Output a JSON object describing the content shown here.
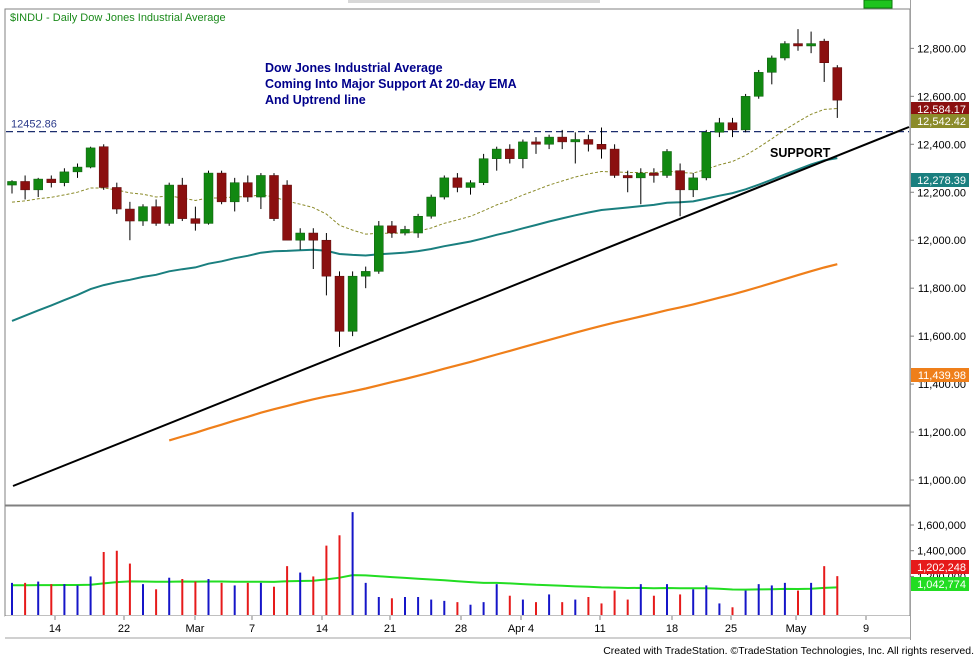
{
  "header": {
    "symbol_label": "$INDU - Daily  Dow Jones Industrial Average"
  },
  "annotation": {
    "lines": [
      "Dow Jones Industrial Average",
      "Coming Into Major Support At 20-day EMA",
      "And Uptrend line"
    ],
    "support_label": "SUPPORT"
  },
  "footer": {
    "credit": "Created with TradeStation. ©TradeStation Technologies, Inc. All rights reserved."
  },
  "colors": {
    "up": "#118811",
    "down": "#8b1010",
    "ma50": "#1a7f7f",
    "ma200": "#ef7f1a",
    "ema20": "#8b8b2a",
    "vol_up": "#1515c8",
    "vol_down": "#e61a1a",
    "vol_avg": "#22dd22",
    "trend": "#000000",
    "support_line": "#1c2e6e",
    "price_badge": "#8b1010"
  },
  "chart_data": {
    "type": "candlestick",
    "title": "$INDU - Daily  Dow Jones Industrial Average",
    "x_tick_labels": [
      "14",
      "22",
      "Mar",
      "7",
      "14",
      "21",
      "28",
      "Apr 4",
      "11",
      "18",
      "25",
      "May",
      "9"
    ],
    "price_axis": {
      "ylim": [
        10900,
        12960
      ],
      "ticks": [
        "12,800.00",
        "12,600.00",
        "12,400.00",
        "12,200.00",
        "12,000.00",
        "11,800.00",
        "11,600.00",
        "11,400.00",
        "11,200.00",
        "11,000.00"
      ]
    },
    "volume_axis": {
      "ylim": [
        900000,
        1740000
      ],
      "ticks": [
        "1,600,000",
        "1,400,000",
        "1,200,000"
      ]
    },
    "last_values": {
      "close": "12,584.17",
      "ema20": "12,542.42",
      "ma50": "12,278.39",
      "ma200": "11,439.98",
      "volume": "1,202,248",
      "volume_avg": "1,042,774"
    },
    "support_level": {
      "value": 12452.86,
      "label": "12452.86"
    },
    "candles": [
      {
        "o": 12230,
        "h": 12250,
        "l": 12195,
        "c": 12245,
        "v": 1150000
      },
      {
        "o": 12245,
        "h": 12270,
        "l": 12170,
        "c": 12210,
        "v": 1150000
      },
      {
        "o": 12210,
        "h": 12260,
        "l": 12180,
        "c": 12255,
        "v": 1160000
      },
      {
        "o": 12255,
        "h": 12270,
        "l": 12220,
        "c": 12240,
        "v": 1140000
      },
      {
        "o": 12240,
        "h": 12300,
        "l": 12225,
        "c": 12285,
        "v": 1140000
      },
      {
        "o": 12285,
        "h": 12320,
        "l": 12260,
        "c": 12305,
        "v": 1130000
      },
      {
        "o": 12305,
        "h": 12390,
        "l": 12300,
        "c": 12385,
        "v": 1200000
      },
      {
        "o": 12390,
        "h": 12400,
        "l": 12210,
        "c": 12220,
        "v": 1390000
      },
      {
        "o": 12220,
        "h": 12240,
        "l": 12110,
        "c": 12130,
        "v": 1400000
      },
      {
        "o": 12130,
        "h": 12160,
        "l": 12000,
        "c": 12080,
        "v": 1300000
      },
      {
        "o": 12080,
        "h": 12150,
        "l": 12060,
        "c": 12140,
        "v": 1140000
      },
      {
        "o": 12140,
        "h": 12170,
        "l": 12060,
        "c": 12070,
        "v": 1100000
      },
      {
        "o": 12070,
        "h": 12240,
        "l": 12060,
        "c": 12230,
        "v": 1190000
      },
      {
        "o": 12230,
        "h": 12260,
        "l": 12080,
        "c": 12090,
        "v": 1180000
      },
      {
        "o": 12090,
        "h": 12140,
        "l": 12040,
        "c": 12070,
        "v": 1160000
      },
      {
        "o": 12070,
        "h": 12290,
        "l": 12065,
        "c": 12280,
        "v": 1180000
      },
      {
        "o": 12280,
        "h": 12290,
        "l": 12150,
        "c": 12160,
        "v": 1150000
      },
      {
        "o": 12160,
        "h": 12260,
        "l": 12120,
        "c": 12240,
        "v": 1130000
      },
      {
        "o": 12240,
        "h": 12270,
        "l": 12160,
        "c": 12180,
        "v": 1150000
      },
      {
        "o": 12180,
        "h": 12280,
        "l": 12130,
        "c": 12270,
        "v": 1150000
      },
      {
        "o": 12270,
        "h": 12280,
        "l": 12080,
        "c": 12090,
        "v": 1120000
      },
      {
        "o": 12230,
        "h": 12250,
        "l": 12000,
        "c": 12000,
        "v": 1280000
      },
      {
        "o": 12000,
        "h": 12050,
        "l": 11960,
        "c": 12030,
        "v": 1230000
      },
      {
        "o": 12030,
        "h": 12050,
        "l": 11880,
        "c": 12000,
        "v": 1200000
      },
      {
        "o": 12000,
        "h": 12030,
        "l": 11770,
        "c": 11850,
        "v": 1440000
      },
      {
        "o": 11850,
        "h": 11870,
        "l": 11555,
        "c": 11620,
        "v": 1520000
      },
      {
        "o": 11620,
        "h": 11870,
        "l": 11600,
        "c": 11850,
        "v": 1700000
      },
      {
        "o": 11850,
        "h": 11890,
        "l": 11800,
        "c": 11870,
        "v": 1150000
      },
      {
        "o": 11870,
        "h": 12080,
        "l": 11860,
        "c": 12060,
        "v": 1040000
      },
      {
        "o": 12060,
        "h": 12080,
        "l": 12010,
        "c": 12030,
        "v": 1030000
      },
      {
        "o": 12030,
        "h": 12060,
        "l": 12020,
        "c": 12045,
        "v": 1040000
      },
      {
        "o": 12030,
        "h": 12110,
        "l": 12010,
        "c": 12100,
        "v": 1040000
      },
      {
        "o": 12100,
        "h": 12190,
        "l": 12090,
        "c": 12180,
        "v": 1020000
      },
      {
        "o": 12180,
        "h": 12270,
        "l": 12170,
        "c": 12260,
        "v": 1010000
      },
      {
        "o": 12260,
        "h": 12280,
        "l": 12200,
        "c": 12220,
        "v": 1000000
      },
      {
        "o": 12220,
        "h": 12250,
        "l": 12190,
        "c": 12240,
        "v": 980000
      },
      {
        "o": 12240,
        "h": 12360,
        "l": 12230,
        "c": 12340,
        "v": 1000000
      },
      {
        "o": 12340,
        "h": 12390,
        "l": 12290,
        "c": 12380,
        "v": 1140000
      },
      {
        "o": 12380,
        "h": 12400,
        "l": 12320,
        "c": 12340,
        "v": 1050000
      },
      {
        "o": 12340,
        "h": 12420,
        "l": 12300,
        "c": 12410,
        "v": 1020000
      },
      {
        "o": 12410,
        "h": 12430,
        "l": 12360,
        "c": 12400,
        "v": 1000000
      },
      {
        "o": 12400,
        "h": 12440,
        "l": 12380,
        "c": 12430,
        "v": 1060000
      },
      {
        "o": 12430,
        "h": 12460,
        "l": 12380,
        "c": 12410,
        "v": 1000000
      },
      {
        "o": 12410,
        "h": 12450,
        "l": 12320,
        "c": 12420,
        "v": 1020000
      },
      {
        "o": 12420,
        "h": 12440,
        "l": 12370,
        "c": 12400,
        "v": 1040000
      },
      {
        "o": 12400,
        "h": 12470,
        "l": 12340,
        "c": 12380,
        "v": 990000
      },
      {
        "o": 12380,
        "h": 12400,
        "l": 12260,
        "c": 12270,
        "v": 1090000
      },
      {
        "o": 12270,
        "h": 12290,
        "l": 12200,
        "c": 12260,
        "v": 1020000
      },
      {
        "o": 12260,
        "h": 12300,
        "l": 12150,
        "c": 12280,
        "v": 1140000
      },
      {
        "o": 12280,
        "h": 12300,
        "l": 12240,
        "c": 12270,
        "v": 1050000
      },
      {
        "o": 12270,
        "h": 12380,
        "l": 12260,
        "c": 12370,
        "v": 1140000
      },
      {
        "o": 12290,
        "h": 12320,
        "l": 12100,
        "c": 12210,
        "v": 1060000
      },
      {
        "o": 12210,
        "h": 12280,
        "l": 12180,
        "c": 12260,
        "v": 1100000
      },
      {
        "o": 12260,
        "h": 12460,
        "l": 12250,
        "c": 12450,
        "v": 1130000
      },
      {
        "o": 12450,
        "h": 12510,
        "l": 12430,
        "c": 12490,
        "v": 990000
      },
      {
        "o": 12490,
        "h": 12510,
        "l": 12430,
        "c": 12460,
        "v": 960000
      },
      {
        "o": 12460,
        "h": 12610,
        "l": 12450,
        "c": 12600,
        "v": 1090000
      },
      {
        "o": 12600,
        "h": 12710,
        "l": 12590,
        "c": 12700,
        "v": 1140000
      },
      {
        "o": 12700,
        "h": 12770,
        "l": 12650,
        "c": 12760,
        "v": 1130000
      },
      {
        "o": 12760,
        "h": 12830,
        "l": 12750,
        "c": 12820,
        "v": 1150000
      },
      {
        "o": 12820,
        "h": 12880,
        "l": 12790,
        "c": 12810,
        "v": 1090000
      },
      {
        "o": 12810,
        "h": 12870,
        "l": 12780,
        "c": 12820,
        "v": 1150000
      },
      {
        "o": 12830,
        "h": 12840,
        "l": 12660,
        "c": 12740,
        "v": 1280000
      },
      {
        "o": 12720,
        "h": 12730,
        "l": 12510,
        "c": 12584,
        "v": 1202248
      }
    ]
  }
}
